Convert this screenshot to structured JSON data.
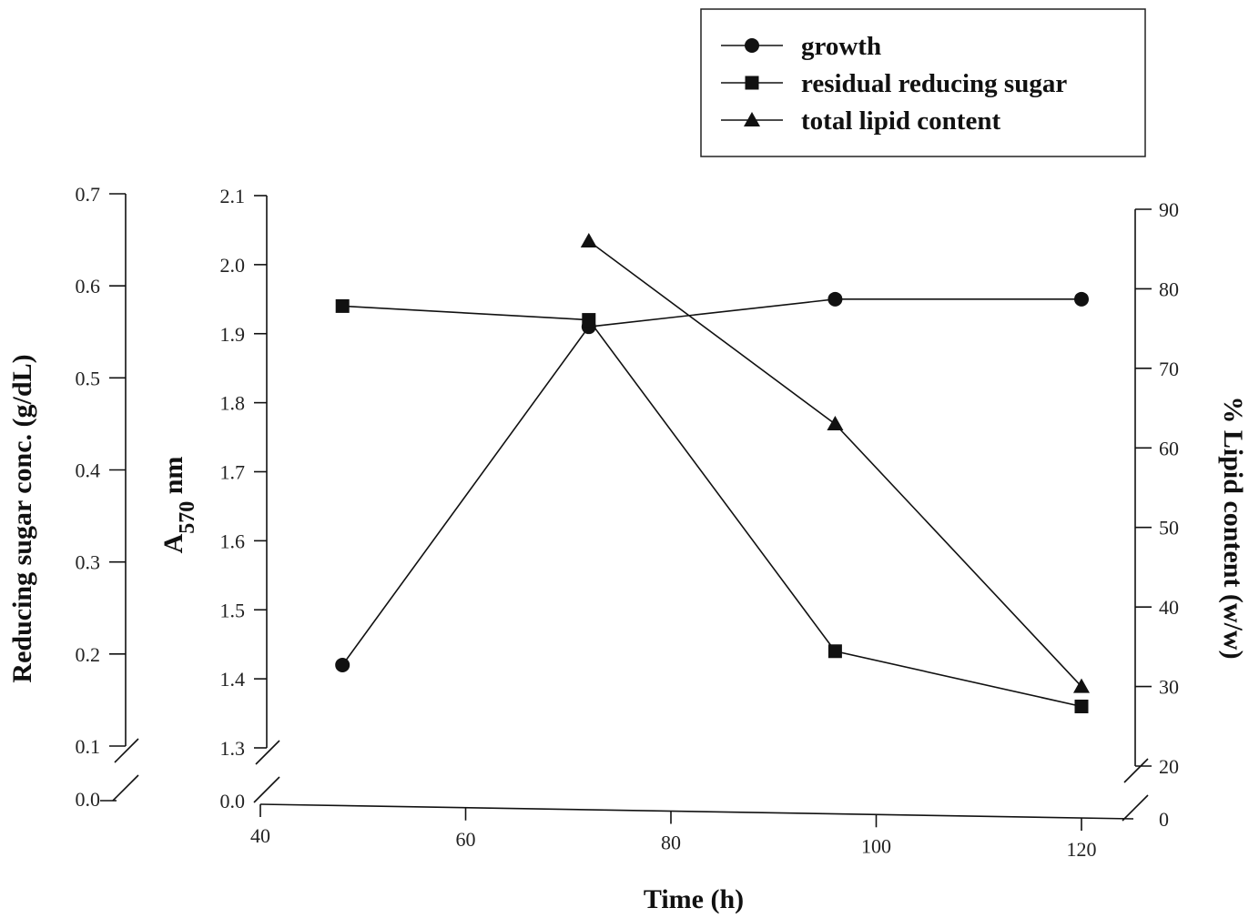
{
  "chart_data": {
    "type": "line",
    "xlabel": "Time (h)",
    "x_ticks": [
      "40",
      "60",
      "80",
      "100",
      "120"
    ],
    "xlim": [
      40,
      125
    ],
    "axes": [
      {
        "id": "sugar",
        "label": "Reducing sugar conc. (g/dL)",
        "ylim": [
          0.1,
          0.7
        ],
        "break_value": "0.0",
        "ticks": [
          "0.1",
          "0.2",
          "0.3",
          "0.4",
          "0.5",
          "0.6",
          "0.7"
        ]
      },
      {
        "id": "a570",
        "label_main": "A",
        "label_sub": "570",
        "label_rest": " nm",
        "ylim": [
          1.3,
          2.1
        ],
        "break_value": "0.0",
        "ticks": [
          "1.3",
          "1.4",
          "1.5",
          "1.6",
          "1.7",
          "1.8",
          "1.9",
          "2.0",
          "2.1"
        ]
      },
      {
        "id": "lipid",
        "label": "% Lipid content (w/w)",
        "ylim": [
          20,
          90
        ],
        "break_value": "0",
        "ticks": [
          "20",
          "30",
          "40",
          "50",
          "60",
          "70",
          "80",
          "90"
        ]
      }
    ],
    "series": [
      {
        "name": "growth",
        "marker": "circle",
        "axis": "a570",
        "x": [
          48,
          72,
          96,
          120
        ],
        "y": [
          1.42,
          1.91,
          1.95,
          1.95
        ]
      },
      {
        "name": "residual reducing sugar",
        "marker": "square",
        "axis": "a570",
        "x": [
          48,
          72,
          96,
          120
        ],
        "y": [
          1.94,
          1.92,
          1.44,
          1.36
        ]
      },
      {
        "name": "total lipid content",
        "marker": "triangle",
        "axis": "lipid",
        "x": [
          72,
          96,
          120
        ],
        "y": [
          86,
          63,
          30
        ]
      }
    ],
    "legend_position": "top-right"
  }
}
